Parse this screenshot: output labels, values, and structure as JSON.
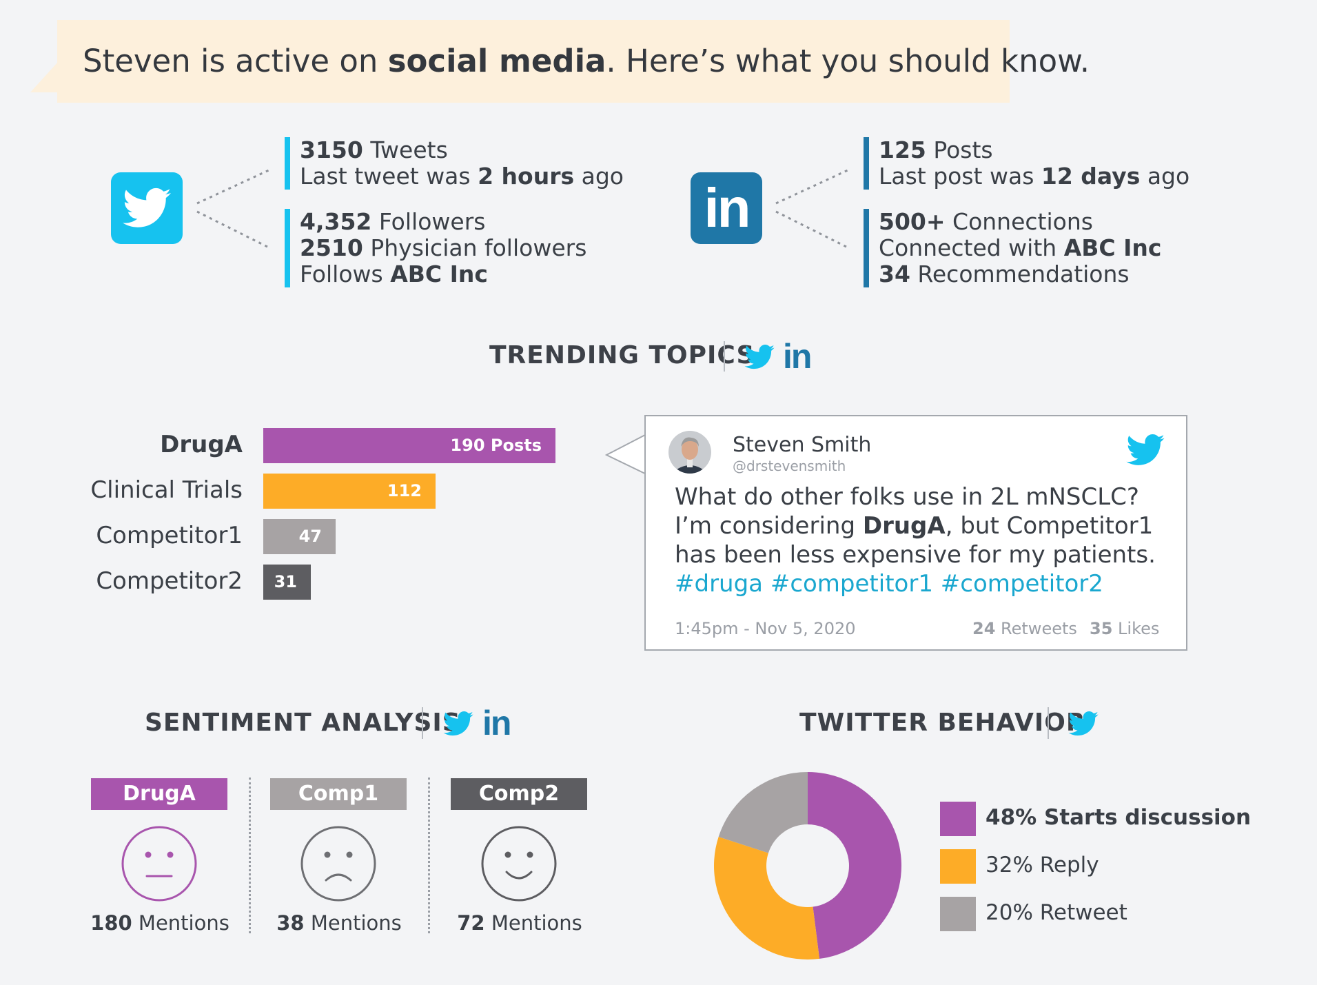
{
  "header": {
    "text_pre": "Steven is active on ",
    "text_bold": "social media",
    "text_post": ". Here’s what you should know."
  },
  "twitter_stats": {
    "tweets_count": "3150",
    "tweets_label": " Tweets",
    "last_tweet_pre": "Last tweet was ",
    "last_tweet_time": "2 hours",
    "last_tweet_post": " ago",
    "followers_count": "4,352",
    "followers_label": " Followers",
    "physician_count": "2510",
    "physician_label": " Physician followers",
    "follows_pre": "Follows ",
    "follows_org": "ABC Inc"
  },
  "linkedin_stats": {
    "posts_count": "125",
    "posts_label": " Posts",
    "last_post_pre": "Last post was ",
    "last_post_time": "12 days",
    "last_post_post": " ago",
    "connections_count": "500+",
    "connections_label": " Connections",
    "connected_pre": "Connected with ",
    "connected_org": "ABC Inc",
    "recommendations_count": "34",
    "recommendations_label": " Recommendations"
  },
  "sections": {
    "trending": "TRENDING TOPICS",
    "sentiment": "SENTIMENT ANALYSIS",
    "behavior": "TWITTER BEHAVIOR"
  },
  "tweet": {
    "name": "Steven Smith",
    "handle": "@drstevensmith",
    "body_1": "What do other folks use in 2L mNSCLC? I’m considering ",
    "body_bold": "DrugA",
    "body_2": ", but Competitor1 has been less expensive for my patients. ",
    "hashtag_1": "#druga",
    "hashtag_2": "#competitor1",
    "hashtag_3": "#competitor2",
    "time": "1:45pm - Nov 5, 2020",
    "retweets_count": "24",
    "retweets_label": " Retweets",
    "likes_count": "35",
    "likes_label": " Likes"
  },
  "sentiment": [
    {
      "label": "DrugA",
      "count": "180",
      "suffix": " Mentions",
      "mood": "neutral"
    },
    {
      "label": "Comp1",
      "count": "38",
      "suffix": " Mentions",
      "mood": "sad"
    },
    {
      "label": "Comp2",
      "count": "72",
      "suffix": " Mentions",
      "mood": "happy"
    }
  ],
  "colors": {
    "purple": "#a855ad",
    "orange": "#fdac27",
    "light_gray": "#a7a3a4",
    "dark_gray": "#5d5d61",
    "twitter": "#16c2ef",
    "linkedin": "#1f77a7"
  },
  "chart_data": [
    {
      "type": "bar",
      "orientation": "horizontal",
      "title": "TRENDING TOPICS",
      "categories": [
        "DrugA",
        "Clinical Trials",
        "Competitor1",
        "Competitor2"
      ],
      "values": [
        190,
        112,
        47,
        31
      ],
      "value_labels": [
        "190 Posts",
        "112",
        "47",
        "31"
      ],
      "colors": [
        "#a855ad",
        "#fdac27",
        "#a7a3a4",
        "#5d5d61"
      ]
    },
    {
      "type": "pie",
      "style": "donut",
      "title": "TWITTER BEHAVIOR",
      "categories": [
        "Starts discussion",
        "Reply",
        "Retweet"
      ],
      "values": [
        48,
        32,
        20
      ],
      "legend_labels": [
        "48% Starts discussion",
        "32% Reply",
        "20% Retweet"
      ],
      "colors": [
        "#a855ad",
        "#fdac27",
        "#a7a3a4"
      ]
    }
  ]
}
